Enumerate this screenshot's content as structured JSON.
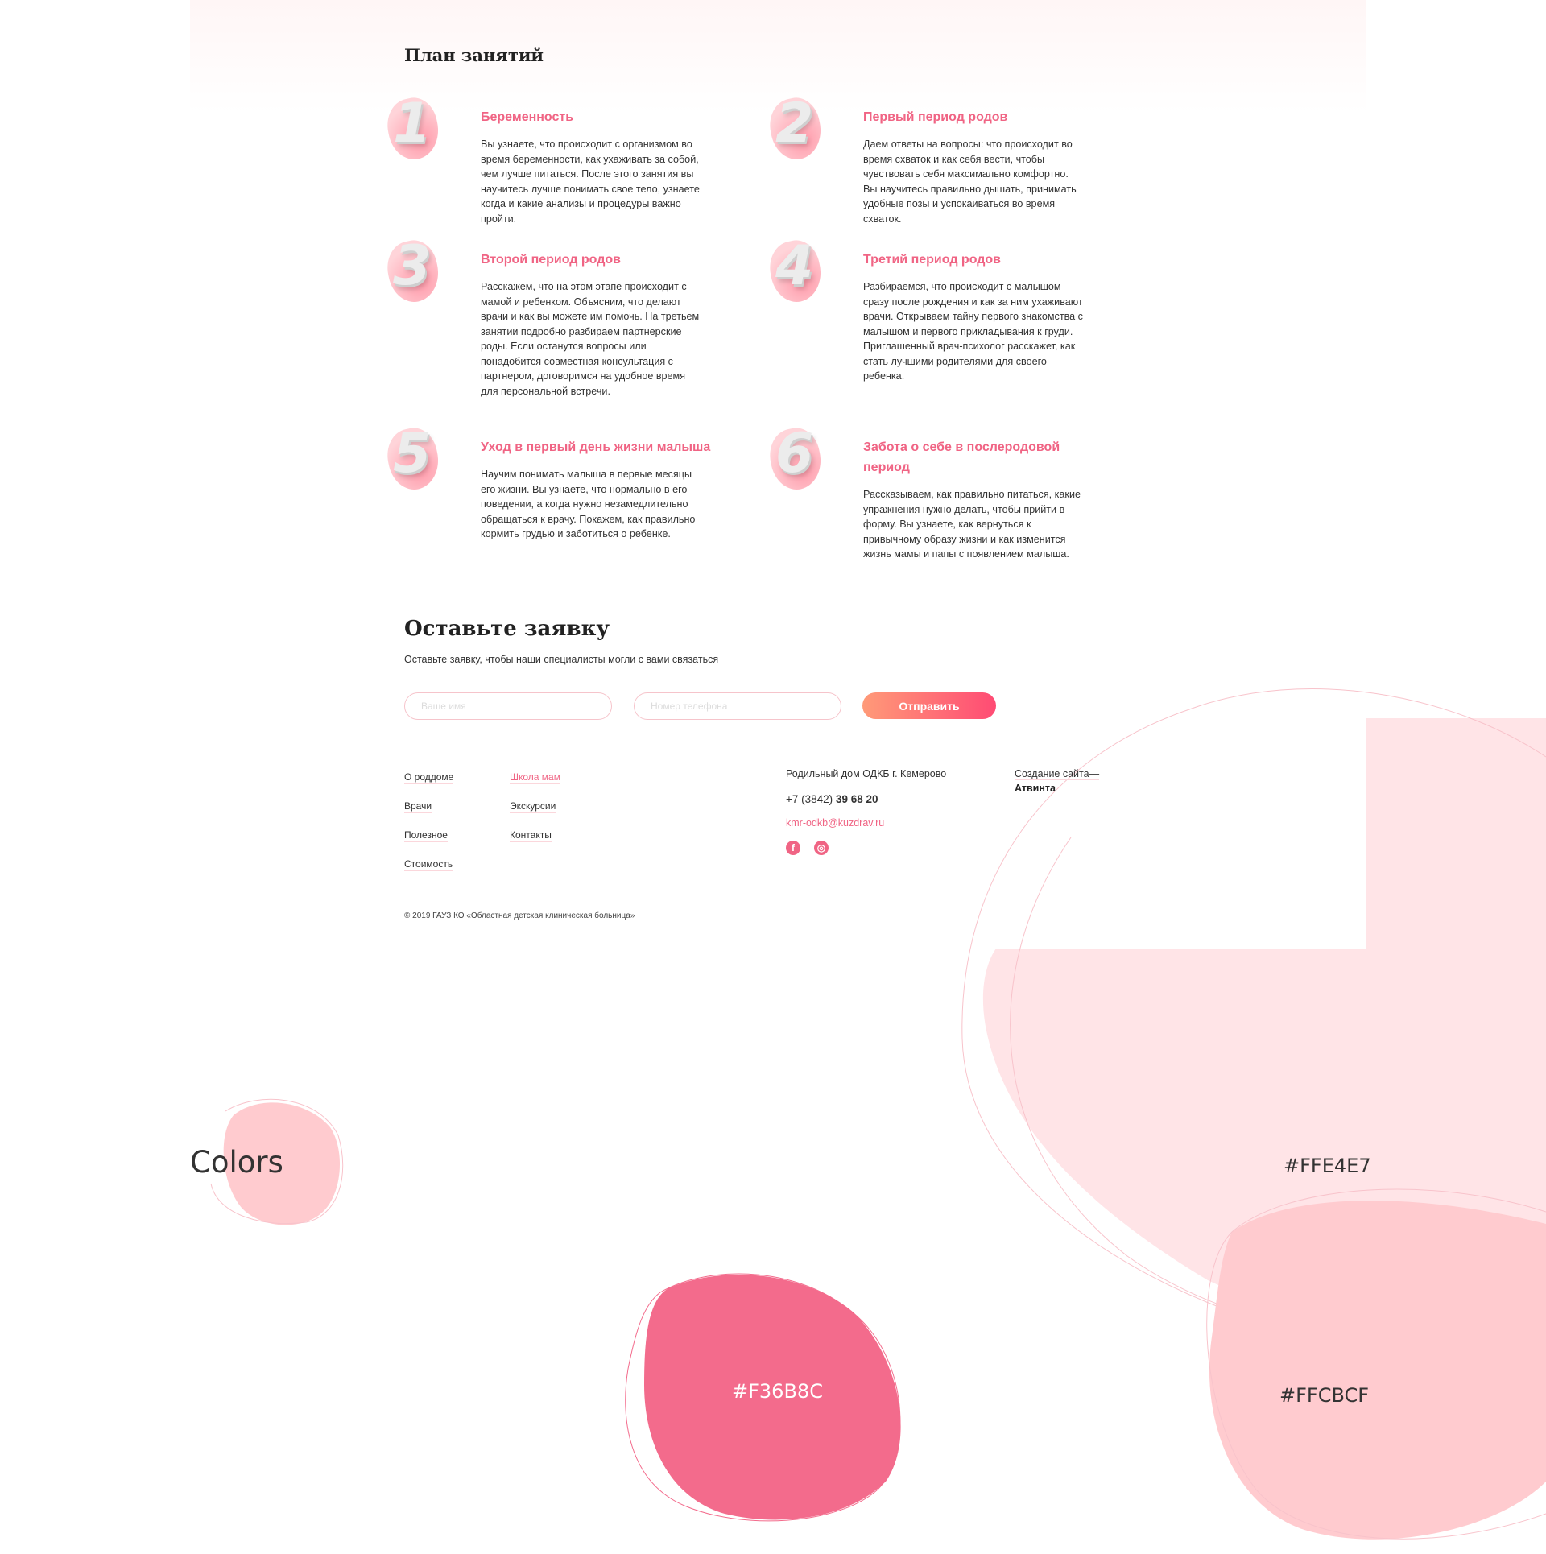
{
  "plan": {
    "title": "План занятий",
    "items": [
      {
        "num": "1",
        "title": "Беременность",
        "text": "Вы узнаете, что происходит с организмом во время беременности, как ухаживать за собой, чем лучше питаться. После этого занятия вы научитесь лучше понимать свое тело, узнаете когда и какие анализы и процедуры важно пройти."
      },
      {
        "num": "2",
        "title": "Первый период родов",
        "text": "Даем ответы на вопросы: что происходит во время схваток и как себя вести, чтобы чувствовать себя максимально комфортно. Вы научитесь правильно дышать, принимать удобные позы и успокаиваться во время схваток."
      },
      {
        "num": "3",
        "title": "Второй период родов",
        "text": "Расскажем, что на этом этапе происходит с мамой и ребенком. Объясним, что делают врачи и как вы можете им помочь. На третьем занятии подробно разбираем партнерские роды. Если останутся вопросы или понадобится совместная консультация с партнером, договоримся на удобное время для персональной встречи."
      },
      {
        "num": "4",
        "title": "Третий период родов",
        "text": "Разбираемся, что происходит с малышом сразу после рождения и как за ним ухаживают врачи. Открываем тайну первого знакомства с малышом и первого прикладывания к груди. Приглашенный врач-психолог расскажет, как стать лучшими родителями для своего ребенка."
      },
      {
        "num": "5",
        "title": "Уход в первый день жизни малыша",
        "text": "Научим понимать малыша в первые месяцы его жизни. Вы узнаете, что нормально в его поведении, а когда нужно незамедлительно обращаться к врачу. Покажем, как правильно кормить грудью и заботиться о ребенке."
      },
      {
        "num": "6",
        "title": "Забота о себе в послеродовой период",
        "text": "Рассказываем, как правильно питаться, какие упражнения нужно делать, чтобы прийти в форму. Вы узнаете, как вернуться к привычному образу жизни и как изменится жизнь мамы и папы с появлением малыша."
      }
    ]
  },
  "form": {
    "title": "Оставьте заявку",
    "subtitle": "Оставьте заявку, чтобы наши специалисты могли с вами связаться",
    "name_placeholder": "Ваше имя",
    "phone_placeholder": "Номер телефона",
    "submit_label": "Отправить"
  },
  "footer": {
    "nav_col1": [
      "О роддоме",
      "Врачи",
      "Полезное",
      "Стоимость"
    ],
    "nav_col2": [
      "Школа мам",
      "Экскурсии",
      "Контакты"
    ],
    "active_item": "Школа мам",
    "org_name": "Родильный дом ОДКБ г. Кемерово",
    "phone_prefix": "+7 (3842)",
    "phone_number": "39 68 20",
    "email": "kmr-odkb@kuzdrav.ru",
    "social": [
      {
        "icon": "facebook-icon",
        "glyph": "f"
      },
      {
        "icon": "instagram-icon",
        "glyph": "◎"
      }
    ],
    "credit_label": "Создание сайта—",
    "credit_name": "Атвинта",
    "copyright": "© 2019 ГАУЗ КО «Областная детская клиническая больница»"
  },
  "palette": {
    "title": "Colors",
    "swatches": [
      {
        "hex": "#FFE4E7",
        "label": "#FFE4E7"
      },
      {
        "hex": "#F36B8C",
        "label": "#F36B8C"
      },
      {
        "hex": "#FFCBCF",
        "label": "#FFCBCF"
      }
    ]
  },
  "colors": {
    "accent": "#f06484",
    "button_start": "#ff9a78",
    "button_end": "#ff4b74"
  }
}
